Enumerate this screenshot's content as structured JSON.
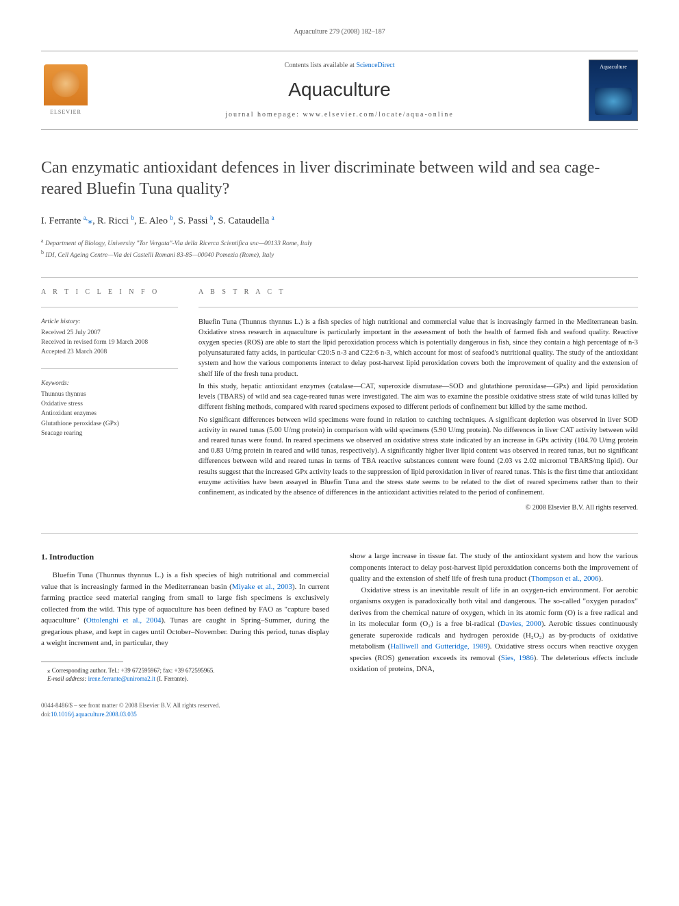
{
  "header": {
    "running_head": "Aquaculture 279 (2008) 182–187",
    "contents_prefix": "Contents lists available at ",
    "contents_link": "ScienceDirect",
    "journal_name": "Aquaculture",
    "homepage_label": "journal homepage: www.elsevier.com/locate/aqua-online",
    "publisher_label": "ELSEVIER",
    "cover_label": "Aquaculture"
  },
  "article": {
    "title": "Can enzymatic antioxidant defences in liver discriminate between wild and sea cage-reared Bluefin Tuna quality?",
    "authors_html": "I. Ferrante <sup>a,</sup><span class='star'>⁎</span>, R. Ricci <sup>b</sup>, E. Aleo <sup>b</sup>, S. Passi <sup>b</sup>, S. Cataudella <sup>a</sup>",
    "affiliations": [
      "Department of Biology, University \"Tor Vergata\"-Via della Ricerca Scientifica snc—00133 Rome, Italy",
      "IDI, Cell Ageing Centre—Via dei Castelli Romani 83-85—00040 Pomezia (Rome), Italy"
    ],
    "aff_markers": [
      "a",
      "b"
    ]
  },
  "info": {
    "section_label": "A R T I C L E   I N F O",
    "history_label": "Article history:",
    "history": [
      "Received 25 July 2007",
      "Received in revised form 19 March 2008",
      "Accepted 23 March 2008"
    ],
    "keywords_label": "Keywords:",
    "keywords": [
      "Thunnus thynnus",
      "Oxidative stress",
      "Antioxidant enzymes",
      "Glutathione peroxidase (GPx)",
      "Seacage rearing"
    ]
  },
  "abstract": {
    "section_label": "A B S T R A C T",
    "paragraphs": [
      "Bluefin Tuna (Thunnus thynnus L.) is a fish species of high nutritional and commercial value that is increasingly farmed in the Mediterranean basin. Oxidative stress research in aquaculture is particularly important in the assessment of both the health of farmed fish and seafood quality. Reactive oxygen species (ROS) are able to start the lipid peroxidation process which is potentially dangerous in fish, since they contain a high percentage of n-3 polyunsaturated fatty acids, in particular C20:5 n-3 and C22:6 n-3, which account for most of seafood's nutritional quality. The study of the antioxidant system and how the various components interact to delay post-harvest lipid peroxidation covers both the improvement of quality and the extension of shelf life of the fresh tuna product.",
      "In this study, hepatic antioxidant enzymes (catalase—CAT, superoxide dismutase—SOD and glutathione peroxidase—GPx) and lipid peroxidation levels (TBARS) of wild and sea cage-reared tunas were investigated. The aim was to examine the possible oxidative stress state of wild tunas killed by different fishing methods, compared with reared specimens exposed to different periods of confinement but killed by the same method.",
      "No significant differences between wild specimens were found in relation to catching techniques. A significant depletion was observed in liver SOD activity in reared tunas (5.00 U/mg protein) in comparison with wild specimens (5.90 U/mg protein). No differences in liver CAT activity between wild and reared tunas were found. In reared specimens we observed an oxidative stress state indicated by an increase in GPx activity (104.70 U/mg protein and 0.83 U/mg protein in reared and wild tunas, respectively). A significantly higher liver lipid content was observed in reared tunas, but no significant differences between wild and reared tunas in terms of TBA reactive substances content were found (2.03 vs 2.02 micromol TBARS/mg lipid). Our results suggest that the increased GPx activity leads to the suppression of lipid peroxidation in liver of reared tunas. This is the first time that antioxidant enzyme activities have been assayed in Bluefin Tuna and the stress state seems to be related to the diet of reared specimens rather than to their confinement, as indicated by the absence of differences in the antioxidant activities related to the period of confinement."
    ],
    "copyright": "© 2008 Elsevier B.V. All rights reserved."
  },
  "body": {
    "intro_heading": "1. Introduction",
    "p1_pre": "Bluefin Tuna (Thunnus thynnus L.) is a fish species of high nutritional and commercial value that is increasingly farmed in the Mediterranean basin (",
    "p1_link1": "Miyake et al., 2003",
    "p1_mid": "). In current farming practice seed material ranging from small to large fish specimens is exclusively collected from the wild. This type of aquaculture has been defined by FAO as \"capture based aquaculture\" (",
    "p1_link2": "Ottolenghi et al., 2004",
    "p1_post": "). Tunas are caught in Spring–Summer, during the gregarious phase, and kept in cages until October–November. During this period, tunas display a weight increment and, in particular, they",
    "p2_pre": "show a large increase in tissue fat. The study of the antioxidant system and how the various components interact to delay post-harvest lipid peroxidation concerns both the improvement of quality and the extension of shelf life of fresh tuna product (",
    "p2_link1": "Thompson et al., 2006",
    "p2_post": ").",
    "p3_pre": "Oxidative stress is an inevitable result of life in an oxygen-rich environment. For aerobic organisms oxygen is paradoxically both vital and dangerous. The so-called \"oxygen paradox\" derives from the chemical nature of oxygen, which in its atomic form (O) is a free radical and in its molecular form (O₂) is a free bi-radical (",
    "p3_link1": "Davies, 2000",
    "p3_mid": "). Aerobic tissues continuously generate superoxide radicals and hydrogen peroxide (H₂O₂) as by-products of oxidative metabolism (",
    "p3_link2": "Halliwell and Gutteridge, 1989",
    "p3_mid2": "). Oxidative stress occurs when reactive oxygen species (ROS) generation exceeds its removal (",
    "p3_link3": "Sies, 1986",
    "p3_post": "). The deleterious effects include oxidation of proteins, DNA,"
  },
  "footnote": {
    "corr_label": "⁎ Corresponding author. Tel.: +39 672595967; fax: +39 672595965.",
    "email_label": "E-mail address:",
    "email": "irene.ferrante@uniroma2.it",
    "email_who": "(I. Ferrante)."
  },
  "footer": {
    "line1": "0044-8486/$ – see front matter © 2008 Elsevier B.V. All rights reserved.",
    "doi_label": "doi:",
    "doi": "10.1016/j.aquaculture.2008.03.035"
  },
  "colors": {
    "link": "#0066cc",
    "text": "#2a2a2a",
    "muted": "#555555",
    "rule": "#bbbbbb"
  }
}
